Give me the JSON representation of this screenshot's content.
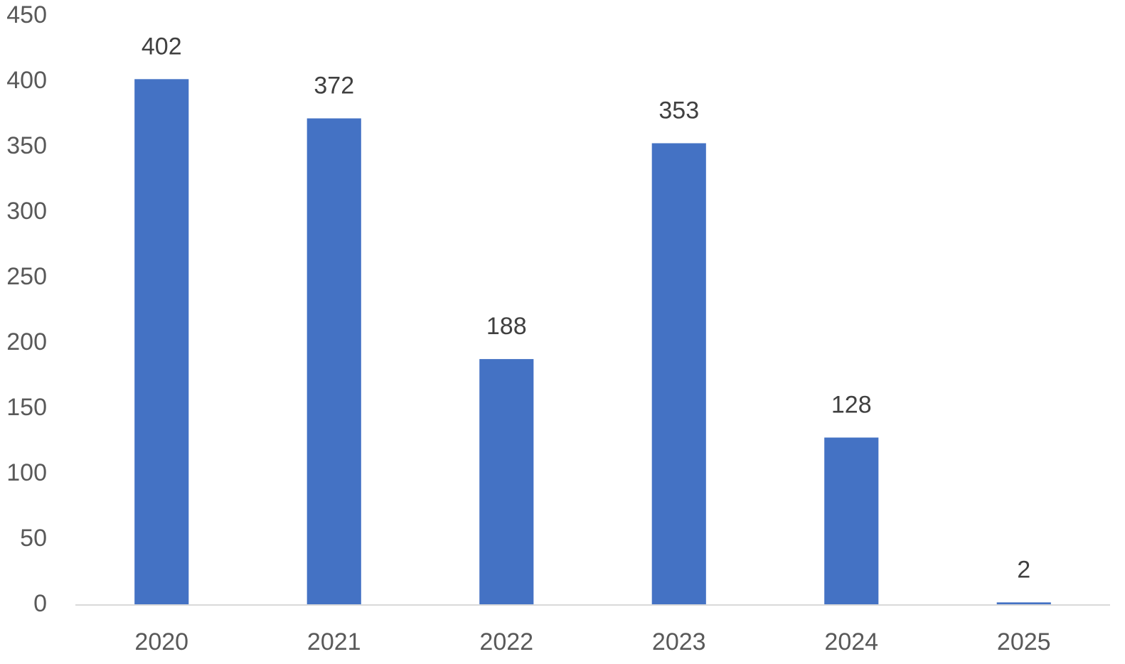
{
  "chart_data": {
    "type": "bar",
    "categories": [
      "2020",
      "2021",
      "2022",
      "2023",
      "2024",
      "2025"
    ],
    "values": [
      402,
      372,
      188,
      353,
      128,
      2
    ],
    "color": "#4472c4",
    "ylim": [
      0,
      450
    ],
    "yticks": [
      0,
      50,
      100,
      150,
      200,
      250,
      300,
      350,
      400,
      450
    ],
    "grid": false
  }
}
